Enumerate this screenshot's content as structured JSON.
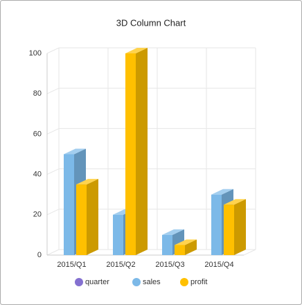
{
  "chart_data": {
    "type": "bar3d",
    "title": "3D Column Chart",
    "categories": [
      "2015/Q1",
      "2015/Q2",
      "2015/Q3",
      "2015/Q4"
    ],
    "series": [
      {
        "name": "quarter",
        "color": "#8470d0",
        "values": [
          null,
          null,
          null,
          null
        ]
      },
      {
        "name": "sales",
        "color": "#7cb9e8",
        "values": [
          50,
          20,
          10,
          30
        ]
      },
      {
        "name": "profit",
        "color": "#ffc000",
        "values": [
          35,
          100,
          5,
          25
        ]
      }
    ],
    "ylim": [
      0,
      100
    ],
    "yticks": [
      0,
      20,
      40,
      60,
      80,
      100
    ],
    "grid": true,
    "legend": "bottom"
  }
}
